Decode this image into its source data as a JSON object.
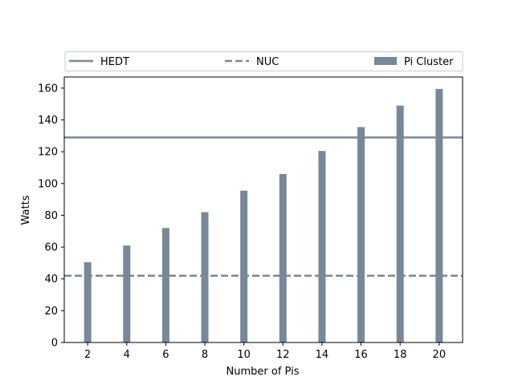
{
  "chart_data": {
    "type": "bar",
    "x": [
      2,
      4,
      6,
      8,
      10,
      12,
      14,
      16,
      18,
      20
    ],
    "xlabel": "Number of Pis",
    "ylabel": "Watts",
    "xlim": [
      0.8,
      21.2
    ],
    "ylim": [
      0,
      167
    ],
    "xticks": [
      2,
      4,
      6,
      8,
      10,
      12,
      14,
      16,
      18,
      20
    ],
    "yticks": [
      0,
      20,
      40,
      60,
      80,
      100,
      120,
      140,
      160
    ],
    "grid": false,
    "legend_position": "top, spanning full width above plot",
    "colors": {
      "series": "#778899"
    },
    "series": [
      {
        "name": "Pi Cluster",
        "kind": "bar",
        "values": [
          50.5,
          61,
          72,
          82,
          95.5,
          106,
          120.5,
          135.5,
          149,
          159.5
        ]
      },
      {
        "name": "HEDT",
        "kind": "hline",
        "style": "solid",
        "value": 129
      },
      {
        "name": "NUC",
        "kind": "hline",
        "style": "dashed",
        "value": 42
      }
    ]
  }
}
